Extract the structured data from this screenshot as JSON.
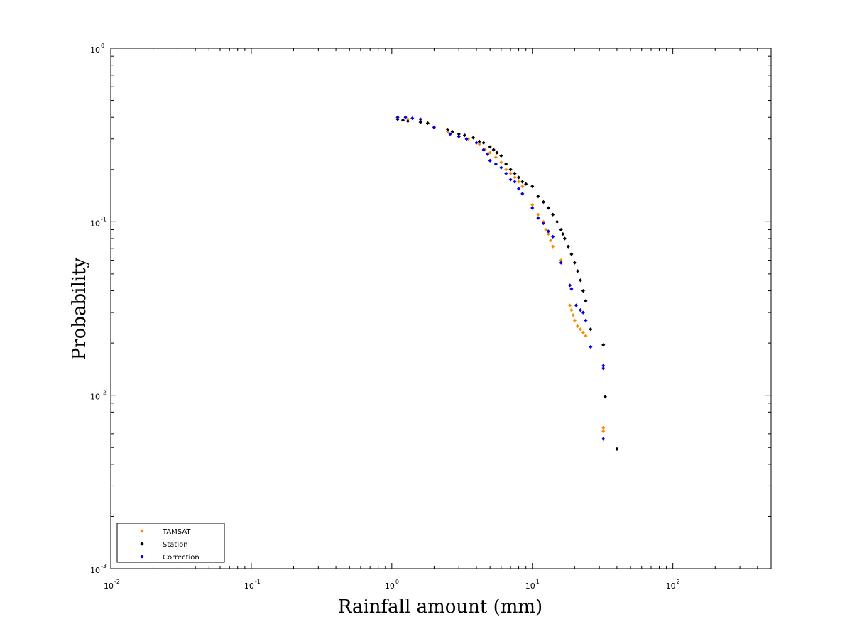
{
  "chart_data": {
    "type": "scatter",
    "xlabel": "Rainfall amount (mm)",
    "ylabel": "Probability",
    "x_scale": "log",
    "y_scale": "log",
    "xlim": [
      0.01,
      500
    ],
    "ylim": [
      0.001,
      1
    ],
    "x_ticks": [
      {
        "base": "10",
        "exp": "-2",
        "value": 0.01
      },
      {
        "base": "10",
        "exp": "-1",
        "value": 0.1
      },
      {
        "base": "10",
        "exp": "0",
        "value": 1
      },
      {
        "base": "10",
        "exp": "1",
        "value": 10
      },
      {
        "base": "10",
        "exp": "2",
        "value": 100
      }
    ],
    "y_ticks": [
      {
        "base": "10",
        "exp": "-3",
        "value": 0.001
      },
      {
        "base": "10",
        "exp": "-2",
        "value": 0.01
      },
      {
        "base": "10",
        "exp": "-1",
        "value": 0.1
      },
      {
        "base": "10",
        "exp": "0",
        "value": 1
      }
    ],
    "grid": false,
    "legend_position": "bottom-left",
    "series": [
      {
        "name": "TAMSAT",
        "color": "#ff8c00",
        "marker": "diamond",
        "points": [
          [
            1.1,
            0.4
          ],
          [
            1.3,
            0.39
          ],
          [
            1.6,
            0.38
          ],
          [
            2.0,
            0.35
          ],
          [
            2.5,
            0.33
          ],
          [
            3.0,
            0.31
          ],
          [
            3.5,
            0.3
          ],
          [
            4.2,
            0.28
          ],
          [
            4.6,
            0.26
          ],
          [
            5.0,
            0.25
          ],
          [
            5.5,
            0.235
          ],
          [
            6.0,
            0.22
          ],
          [
            6.5,
            0.2
          ],
          [
            7.0,
            0.19
          ],
          [
            7.5,
            0.18
          ],
          [
            8.0,
            0.17
          ],
          [
            8.5,
            0.16
          ],
          [
            10.0,
            0.125
          ],
          [
            11.0,
            0.11
          ],
          [
            12.0,
            0.1
          ],
          [
            12.5,
            0.09
          ],
          [
            13.0,
            0.085
          ],
          [
            13.5,
            0.078
          ],
          [
            14.0,
            0.072
          ],
          [
            16.0,
            0.06
          ],
          [
            16.0,
            0.058
          ],
          [
            18.5,
            0.033
          ],
          [
            19.0,
            0.031
          ],
          [
            19.5,
            0.029
          ],
          [
            20.0,
            0.027
          ],
          [
            21.0,
            0.025
          ],
          [
            22.0,
            0.024
          ],
          [
            23.0,
            0.023
          ],
          [
            24.0,
            0.022
          ],
          [
            32.0,
            0.0065
          ],
          [
            32.0,
            0.0062
          ]
        ]
      },
      {
        "name": "Station",
        "color": "#000000",
        "marker": "diamond",
        "points": [
          [
            1.1,
            0.39
          ],
          [
            1.2,
            0.385
          ],
          [
            1.3,
            0.38
          ],
          [
            1.6,
            0.375
          ],
          [
            1.8,
            0.37
          ],
          [
            2.5,
            0.34
          ],
          [
            2.7,
            0.33
          ],
          [
            3.0,
            0.32
          ],
          [
            3.3,
            0.315
          ],
          [
            3.8,
            0.305
          ],
          [
            4.2,
            0.29
          ],
          [
            4.5,
            0.285
          ],
          [
            5.0,
            0.27
          ],
          [
            5.3,
            0.26
          ],
          [
            5.6,
            0.25
          ],
          [
            6.0,
            0.24
          ],
          [
            6.5,
            0.215
          ],
          [
            7.0,
            0.2
          ],
          [
            7.5,
            0.19
          ],
          [
            8.0,
            0.18
          ],
          [
            8.5,
            0.17
          ],
          [
            9.0,
            0.165
          ],
          [
            10.0,
            0.16
          ],
          [
            11.0,
            0.14
          ],
          [
            12.0,
            0.13
          ],
          [
            13.0,
            0.12
          ],
          [
            14.0,
            0.11
          ],
          [
            15.0,
            0.1
          ],
          [
            16.0,
            0.09
          ],
          [
            16.5,
            0.085
          ],
          [
            17.0,
            0.08
          ],
          [
            18.0,
            0.072
          ],
          [
            19.0,
            0.065
          ],
          [
            20.0,
            0.058
          ],
          [
            21.0,
            0.052
          ],
          [
            22.0,
            0.046
          ],
          [
            23.0,
            0.04
          ],
          [
            24.0,
            0.035
          ],
          [
            26.0,
            0.024
          ],
          [
            32.0,
            0.0195
          ],
          [
            33.0,
            0.0098
          ],
          [
            40.0,
            0.0049
          ]
        ]
      },
      {
        "name": "Correction",
        "color": "#0000ee",
        "marker": "diamond",
        "points": [
          [
            1.1,
            0.4
          ],
          [
            1.25,
            0.4
          ],
          [
            1.4,
            0.395
          ],
          [
            1.6,
            0.39
          ],
          [
            2.0,
            0.35
          ],
          [
            2.6,
            0.32
          ],
          [
            3.0,
            0.31
          ],
          [
            3.4,
            0.3
          ],
          [
            4.0,
            0.285
          ],
          [
            4.5,
            0.26
          ],
          [
            4.8,
            0.245
          ],
          [
            5.0,
            0.225
          ],
          [
            5.5,
            0.215
          ],
          [
            6.0,
            0.205
          ],
          [
            6.5,
            0.19
          ],
          [
            7.0,
            0.175
          ],
          [
            7.5,
            0.17
          ],
          [
            8.0,
            0.155
          ],
          [
            8.5,
            0.145
          ],
          [
            10.0,
            0.12
          ],
          [
            11.0,
            0.105
          ],
          [
            12.0,
            0.098
          ],
          [
            13.0,
            0.088
          ],
          [
            14.0,
            0.082
          ],
          [
            16.0,
            0.058
          ],
          [
            18.5,
            0.043
          ],
          [
            19.0,
            0.041
          ],
          [
            20.5,
            0.033
          ],
          [
            22.0,
            0.031
          ],
          [
            23.0,
            0.03
          ],
          [
            24.0,
            0.027
          ],
          [
            26.0,
            0.019
          ],
          [
            32.0,
            0.0148
          ],
          [
            32.0,
            0.0143
          ],
          [
            32.0,
            0.0056
          ]
        ]
      }
    ]
  }
}
